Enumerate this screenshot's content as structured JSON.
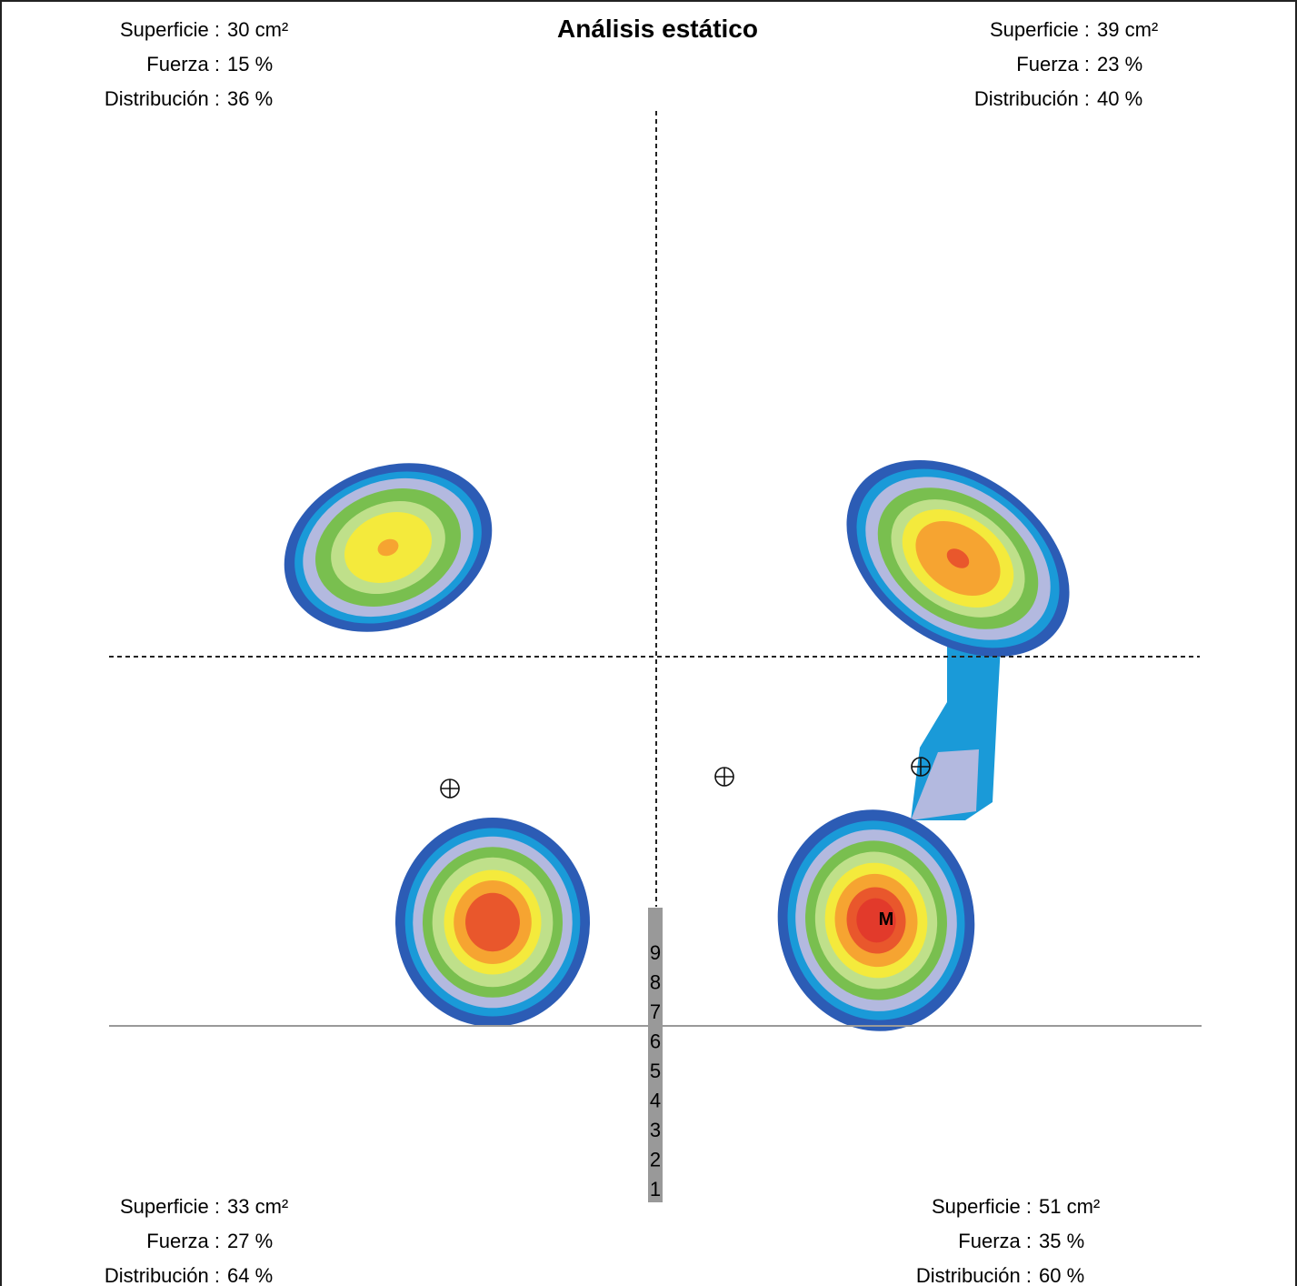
{
  "title": "Análisis estático",
  "quadrants": [
    {
      "rows": [
        {
          "label": "Superficie :",
          "value": "30 cm²"
        },
        {
          "label": "Fuerza :",
          "value": "15 %"
        },
        {
          "label": "Distribución :",
          "value": "36 %"
        }
      ]
    },
    {
      "rows": [
        {
          "label": "Superficie :",
          "value": "39 cm²"
        },
        {
          "label": "Fuerza :",
          "value": "23 %"
        },
        {
          "label": "Distribución :",
          "value": "40 %"
        }
      ]
    },
    {
      "rows": [
        {
          "label": "Superficie :",
          "value": "33 cm²"
        },
        {
          "label": "Fuerza :",
          "value": "27 %"
        },
        {
          "label": "Distribución :",
          "value": "64 %"
        }
      ]
    },
    {
      "rows": [
        {
          "label": "Superficie :",
          "value": "51 cm²"
        },
        {
          "label": "Fuerza :",
          "value": "35 %"
        },
        {
          "label": "Distribución :",
          "value": "60 %"
        }
      ]
    }
  ],
  "scale": [
    "9",
    "8",
    "7",
    "6",
    "5",
    "4",
    "3",
    "2",
    "1"
  ],
  "marker": "M"
}
